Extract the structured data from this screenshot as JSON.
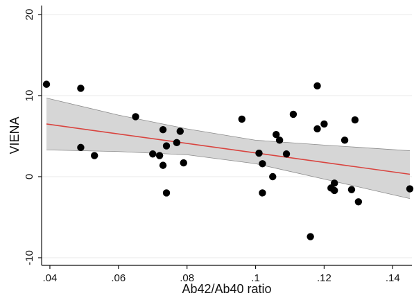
{
  "chart_data": {
    "type": "scatter",
    "title": "",
    "xlabel": "Ab42/Ab40 ratio",
    "ylabel": "VIENA",
    "xlim": [
      0.039,
      0.145
    ],
    "ylim": [
      -10,
      20
    ],
    "xticks": [
      0.04,
      0.06,
      0.08,
      0.1,
      0.12,
      0.14
    ],
    "xtick_labels": [
      ".04",
      ".06",
      ".08",
      ".1",
      ".12",
      ".14"
    ],
    "yticks": [
      -10,
      0,
      10,
      20
    ],
    "ytick_labels": [
      "-10",
      "0",
      "10",
      "20"
    ],
    "grid": "horizontal",
    "legend": "none",
    "colors": {
      "points": "#000000",
      "fit_line": "#d9443f",
      "ci_band": "#d6d6d6",
      "ci_edge": "#8c8c8c",
      "grid": "#e8e8e8",
      "axis": "#111111"
    },
    "points": [
      {
        "x": 0.039,
        "y": 11.4
      },
      {
        "x": 0.049,
        "y": 10.9
      },
      {
        "x": 0.049,
        "y": 3.6
      },
      {
        "x": 0.053,
        "y": 2.6
      },
      {
        "x": 0.065,
        "y": 7.4
      },
      {
        "x": 0.07,
        "y": 2.8
      },
      {
        "x": 0.072,
        "y": 2.6
      },
      {
        "x": 0.073,
        "y": 5.8
      },
      {
        "x": 0.073,
        "y": 1.4
      },
      {
        "x": 0.074,
        "y": 3.8
      },
      {
        "x": 0.074,
        "y": -2.0
      },
      {
        "x": 0.077,
        "y": 4.2
      },
      {
        "x": 0.078,
        "y": 5.6
      },
      {
        "x": 0.079,
        "y": 1.7
      },
      {
        "x": 0.096,
        "y": 7.1
      },
      {
        "x": 0.101,
        "y": 2.9
      },
      {
        "x": 0.102,
        "y": 1.6
      },
      {
        "x": 0.102,
        "y": -2.0
      },
      {
        "x": 0.105,
        "y": 0.0
      },
      {
        "x": 0.106,
        "y": 5.2
      },
      {
        "x": 0.107,
        "y": 4.5
      },
      {
        "x": 0.109,
        "y": 2.8
      },
      {
        "x": 0.111,
        "y": 7.7
      },
      {
        "x": 0.116,
        "y": -7.4
      },
      {
        "x": 0.118,
        "y": 11.2
      },
      {
        "x": 0.118,
        "y": 5.9
      },
      {
        "x": 0.12,
        "y": 6.5
      },
      {
        "x": 0.122,
        "y": -1.4
      },
      {
        "x": 0.123,
        "y": -1.7
      },
      {
        "x": 0.123,
        "y": -0.8
      },
      {
        "x": 0.126,
        "y": 4.5
      },
      {
        "x": 0.128,
        "y": -1.6
      },
      {
        "x": 0.129,
        "y": 7.0
      },
      {
        "x": 0.13,
        "y": -3.1
      },
      {
        "x": 0.145,
        "y": -1.5
      }
    ],
    "fit_line": {
      "x": [
        0.039,
        0.145
      ],
      "y": [
        6.5,
        0.3
      ]
    },
    "ci_band": {
      "x": [
        0.039,
        0.06,
        0.08,
        0.1,
        0.12,
        0.145
      ],
      "upper": [
        9.7,
        7.6,
        5.9,
        4.5,
        3.9,
        3.2
      ],
      "lower": [
        3.3,
        3.1,
        2.7,
        1.6,
        -0.3,
        -2.7
      ]
    }
  }
}
